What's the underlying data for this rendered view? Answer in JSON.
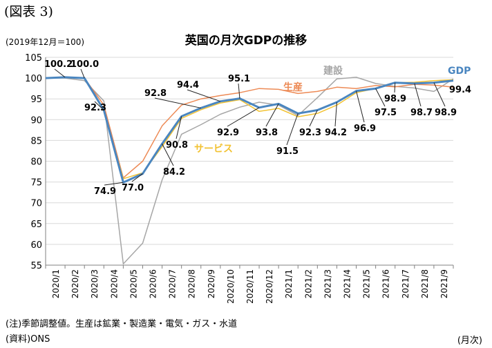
{
  "figure_label": "(図表 3)",
  "base_note": "(2019年12月＝100)",
  "note": "(注)季節調整値。生産は鉱業・製造業・電気・ガス・水道",
  "source": "(資料)ONS",
  "x_unit": "(月次)",
  "colors": {
    "gdp": "#4a86c0",
    "production": "#ed8a55",
    "construction": "#a6a6a6",
    "services": "#f2c232",
    "grid": "#d9d9d9",
    "axis": "#808080"
  },
  "chart_data": {
    "type": "line",
    "title": "英国の月次GDPの推移",
    "categories": [
      "2019/12",
      "2020/1",
      "2020/2",
      "2020/3",
      "2020/4",
      "2020/5",
      "2020/6",
      "2020/7",
      "2020/8",
      "2020/9",
      "2020/10",
      "2020/11",
      "2020/12",
      "2021/1",
      "2021/2",
      "2021/3",
      "2021/4",
      "2021/5",
      "2021/6",
      "2021/7",
      "2021/8",
      "2021/9"
    ],
    "x_tick_labels": [
      "2020/1",
      "2020/2",
      "2020/3",
      "2020/4",
      "2020/5",
      "2020/6",
      "2020/7",
      "2020/8",
      "2020/9",
      "2020/10",
      "2020/11",
      "2020/12",
      "2021/1",
      "2021/2",
      "2021/3",
      "2021/4",
      "2021/5",
      "2021/6",
      "2021/7",
      "2021/8",
      "2021/9"
    ],
    "ylim": [
      55,
      105
    ],
    "y_ticks": [
      55,
      60,
      65,
      70,
      75,
      80,
      85,
      90,
      95,
      100,
      105
    ],
    "grid": true,
    "series": [
      {
        "name": "GDP",
        "key": "gdp",
        "width": 3,
        "values": [
          100,
          100.2,
          100.0,
          92.3,
          74.9,
          77.0,
          84.2,
          90.8,
          92.8,
          94.4,
          95.1,
          92.9,
          93.8,
          91.5,
          92.3,
          94.2,
          96.9,
          97.5,
          98.9,
          98.7,
          98.9,
          99.4
        ]
      },
      {
        "name": "生産",
        "key": "production",
        "width": 1.5,
        "values": [
          100,
          100.3,
          100.0,
          93.5,
          76.0,
          80.0,
          88.5,
          93.5,
          95.0,
          95.8,
          96.5,
          97.5,
          97.3,
          96.3,
          96.8,
          97.8,
          97.5,
          98.2,
          97.9,
          98.5,
          98.3,
          97.8
        ]
      },
      {
        "name": "建設",
        "key": "construction",
        "width": 1.5,
        "values": [
          100,
          100.0,
          99.4,
          94.5,
          55.3,
          60.3,
          75.5,
          86.5,
          88.8,
          91.3,
          93.0,
          94.2,
          93.5,
          91.0,
          95.3,
          99.8,
          100.2,
          98.7,
          98.0,
          97.6,
          96.8,
          99.8
        ]
      },
      {
        "name": "サービス",
        "key": "services",
        "width": 1.5,
        "values": [
          100,
          100.2,
          99.9,
          92.0,
          75.8,
          77.2,
          83.5,
          90.3,
          92.4,
          94.0,
          94.8,
          92.0,
          92.7,
          90.7,
          91.5,
          93.5,
          96.5,
          97.5,
          98.9,
          99.0,
          99.4,
          99.6
        ]
      }
    ],
    "data_labels": [
      "100.2",
      "100.0",
      "92.3",
      "74.9",
      "77.0",
      "84.2",
      "90.8",
      "92.8",
      "94.4",
      "95.1",
      "92.9",
      "93.8",
      "91.5",
      "92.3",
      "94.2",
      "96.9",
      "97.5",
      "98.9",
      "98.7",
      "98.9",
      "99.4"
    ],
    "series_labels": {
      "gdp": "GDP",
      "production": "生産",
      "construction": "建設",
      "services": "サービス"
    }
  }
}
